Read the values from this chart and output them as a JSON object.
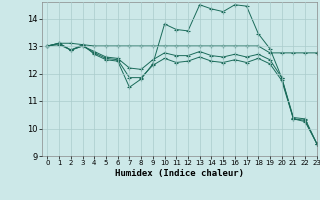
{
  "xlabel": "Humidex (Indice chaleur)",
  "background_color": "#cce8e8",
  "grid_color": "#aacccc",
  "line_color": "#1a6b5a",
  "xlim": [
    -0.5,
    23
  ],
  "ylim": [
    9,
    14.6
  ],
  "yticks": [
    9,
    10,
    11,
    12,
    13,
    14
  ],
  "xticks": [
    0,
    1,
    2,
    3,
    4,
    5,
    6,
    7,
    8,
    9,
    10,
    11,
    12,
    13,
    14,
    15,
    16,
    17,
    18,
    19,
    20,
    21,
    22,
    23
  ],
  "series": [
    {
      "x": [
        0,
        1,
        2,
        3,
        4,
        5,
        6,
        7,
        8,
        9,
        10,
        11,
        12,
        13,
        14,
        15,
        16,
        17,
        18,
        19,
        20,
        21,
        22,
        23
      ],
      "y": [
        13.0,
        13.1,
        13.1,
        13.05,
        13.0,
        13.0,
        13.0,
        13.0,
        13.0,
        13.0,
        13.0,
        13.0,
        13.0,
        13.0,
        13.0,
        13.0,
        13.0,
        13.0,
        13.0,
        12.75,
        12.75,
        12.75,
        12.75,
        12.75
      ]
    },
    {
      "x": [
        0,
        1,
        2,
        3,
        4,
        5,
        6,
        7,
        8,
        9,
        10,
        11,
        12,
        13,
        14,
        15,
        16,
        17,
        18,
        19,
        20,
        21,
        22,
        23
      ],
      "y": [
        13.0,
        13.1,
        12.85,
        13.0,
        12.8,
        12.6,
        12.55,
        12.2,
        12.15,
        12.5,
        12.75,
        12.65,
        12.65,
        12.8,
        12.65,
        12.6,
        12.7,
        12.6,
        12.7,
        12.5,
        11.85,
        10.35,
        10.3,
        9.45
      ]
    },
    {
      "x": [
        0,
        1,
        2,
        3,
        4,
        5,
        6,
        7,
        8,
        9,
        10,
        11,
        12,
        13,
        14,
        15,
        16,
        17,
        18,
        19,
        20,
        21,
        22,
        23
      ],
      "y": [
        13.0,
        13.1,
        12.85,
        13.0,
        12.75,
        12.55,
        12.5,
        11.85,
        11.85,
        12.3,
        12.55,
        12.4,
        12.45,
        12.6,
        12.45,
        12.4,
        12.5,
        12.4,
        12.55,
        12.35,
        11.75,
        10.35,
        10.25,
        9.45
      ]
    },
    {
      "x": [
        0,
        1,
        2,
        3,
        4,
        5,
        6,
        7,
        8,
        9,
        10,
        11,
        12,
        13,
        14,
        15,
        16,
        17,
        18,
        19,
        20,
        21,
        22,
        23
      ],
      "y": [
        13.0,
        13.05,
        12.85,
        13.05,
        12.7,
        12.5,
        12.45,
        11.5,
        11.8,
        12.35,
        13.8,
        13.6,
        13.55,
        14.5,
        14.35,
        14.25,
        14.5,
        14.45,
        13.45,
        12.9,
        11.85,
        10.4,
        10.35,
        9.45
      ]
    }
  ]
}
